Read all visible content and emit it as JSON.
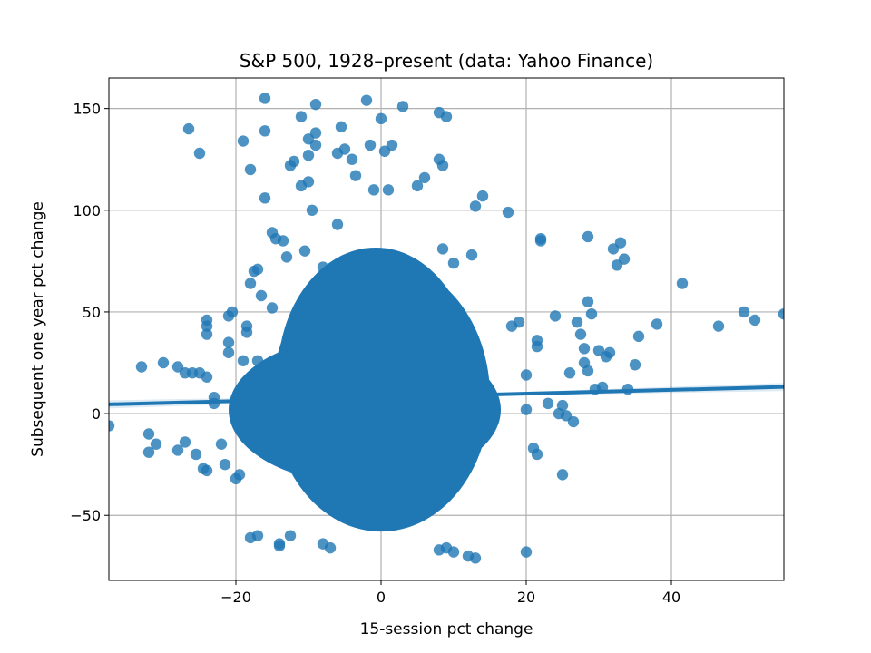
{
  "chart_data": {
    "type": "scatter",
    "title": "S&P 500, 1928–present (data: Yahoo Finance)",
    "xlabel": "15-session pct change",
    "ylabel": "Subsequent one year pct change",
    "xlim": [
      -37.5,
      55.5
    ],
    "ylim": [
      -82,
      165
    ],
    "xticks": [
      -20,
      0,
      20,
      40
    ],
    "xtick_labels": [
      "−20",
      "0",
      "20",
      "40"
    ],
    "yticks": [
      -50,
      0,
      50,
      100,
      150
    ],
    "ytick_labels": [
      "−50",
      "0",
      "50",
      "100",
      "150"
    ],
    "grid": true,
    "marker_color": "#1f77b4",
    "regression": {
      "slope": 0.092,
      "intercept": 8.0,
      "ci_halfwidth_at_edges": 2.0
    },
    "dense_core": {
      "x_range": [
        -15,
        15
      ],
      "y_range": [
        -58,
        75
      ]
    },
    "points": [
      [
        -37.5,
        -6
      ],
      [
        -33,
        23
      ],
      [
        -32,
        -10
      ],
      [
        -32,
        -19
      ],
      [
        -31,
        -15
      ],
      [
        -30,
        25
      ],
      [
        -28,
        23
      ],
      [
        -28,
        -18
      ],
      [
        -27,
        20
      ],
      [
        -27,
        -14
      ],
      [
        -26.5,
        140
      ],
      [
        -26,
        20
      ],
      [
        -25.5,
        -20
      ],
      [
        -25,
        128
      ],
      [
        -25,
        20
      ],
      [
        -24.5,
        -27
      ],
      [
        -24,
        -28
      ],
      [
        -24,
        18
      ],
      [
        -24,
        46
      ],
      [
        -24,
        43
      ],
      [
        -24,
        39
      ],
      [
        -23,
        8
      ],
      [
        -23,
        5
      ],
      [
        -22,
        -15
      ],
      [
        -21.5,
        -25
      ],
      [
        -21,
        30
      ],
      [
        -21,
        35
      ],
      [
        -21,
        48
      ],
      [
        -20.5,
        50
      ],
      [
        -20,
        -32
      ],
      [
        -19.5,
        -30
      ],
      [
        -19,
        134
      ],
      [
        -19,
        26
      ],
      [
        -18.5,
        43
      ],
      [
        -18.5,
        40
      ],
      [
        -18,
        64
      ],
      [
        -18,
        120
      ],
      [
        -18,
        -61
      ],
      [
        -17.5,
        70
      ],
      [
        -17,
        -60
      ],
      [
        -17,
        71
      ],
      [
        -17,
        26
      ],
      [
        -16.5,
        58
      ],
      [
        -16,
        155
      ],
      [
        -16,
        139
      ],
      [
        -16,
        106
      ],
      [
        -15,
        89
      ],
      [
        -15,
        52
      ],
      [
        -14.5,
        86
      ],
      [
        -14,
        -64
      ],
      [
        -14,
        -65
      ],
      [
        -13.5,
        85
      ],
      [
        -13,
        77
      ],
      [
        -12.5,
        122
      ],
      [
        -12,
        124
      ],
      [
        -12.5,
        -60
      ],
      [
        -11.5,
        46
      ],
      [
        -11,
        146
      ],
      [
        -11,
        112
      ],
      [
        -10.5,
        80
      ],
      [
        -10,
        127
      ],
      [
        -10,
        135
      ],
      [
        -10,
        114
      ],
      [
        -9.5,
        100
      ],
      [
        -9,
        152
      ],
      [
        -9,
        138
      ],
      [
        -9,
        132
      ],
      [
        -8,
        72
      ],
      [
        -8,
        -64
      ],
      [
        -7,
        -66
      ],
      [
        -6,
        128
      ],
      [
        -6,
        93
      ],
      [
        -5.5,
        141
      ],
      [
        -5,
        130
      ],
      [
        -4,
        125
      ],
      [
        -3.5,
        117
      ],
      [
        -2,
        154
      ],
      [
        -1.5,
        132
      ],
      [
        -1,
        110
      ],
      [
        0,
        145
      ],
      [
        0.5,
        129
      ],
      [
        1,
        110
      ],
      [
        1.5,
        132
      ],
      [
        3,
        151
      ],
      [
        5,
        112
      ],
      [
        6,
        116
      ],
      [
        8,
        148
      ],
      [
        8,
        125
      ],
      [
        8.5,
        122
      ],
      [
        9,
        146
      ],
      [
        8.5,
        81
      ],
      [
        10,
        74
      ],
      [
        12.5,
        78
      ],
      [
        13,
        102
      ],
      [
        14,
        107
      ],
      [
        17.5,
        99
      ],
      [
        8,
        -67
      ],
      [
        9,
        -66
      ],
      [
        10,
        -68
      ],
      [
        12,
        -70
      ],
      [
        13,
        -71
      ],
      [
        18,
        43
      ],
      [
        19,
        45
      ],
      [
        20,
        19
      ],
      [
        20,
        2
      ],
      [
        21,
        -17
      ],
      [
        21.5,
        -20
      ],
      [
        21.5,
        33
      ],
      [
        21.5,
        36
      ],
      [
        22,
        86
      ],
      [
        22,
        85
      ],
      [
        23,
        5
      ],
      [
        24,
        48
      ],
      [
        24.5,
        0
      ],
      [
        25,
        -30
      ],
      [
        25,
        4
      ],
      [
        25.5,
        -1
      ],
      [
        26,
        20
      ],
      [
        26.5,
        -4
      ],
      [
        27,
        45
      ],
      [
        27.5,
        39
      ],
      [
        28,
        25
      ],
      [
        28,
        32
      ],
      [
        28.5,
        55
      ],
      [
        29,
        49
      ],
      [
        28.5,
        87
      ],
      [
        28.5,
        21
      ],
      [
        29.5,
        12
      ],
      [
        30,
        31
      ],
      [
        30.5,
        13
      ],
      [
        31,
        28
      ],
      [
        31.5,
        30
      ],
      [
        32,
        81
      ],
      [
        32.5,
        73
      ],
      [
        33,
        84
      ],
      [
        33.5,
        76
      ],
      [
        34,
        12
      ],
      [
        35,
        24
      ],
      [
        35.5,
        38
      ],
      [
        38,
        44
      ],
      [
        41.5,
        64
      ],
      [
        46.5,
        43
      ],
      [
        50,
        50
      ],
      [
        51.5,
        46
      ],
      [
        55.5,
        49
      ],
      [
        20,
        -68
      ]
    ]
  }
}
